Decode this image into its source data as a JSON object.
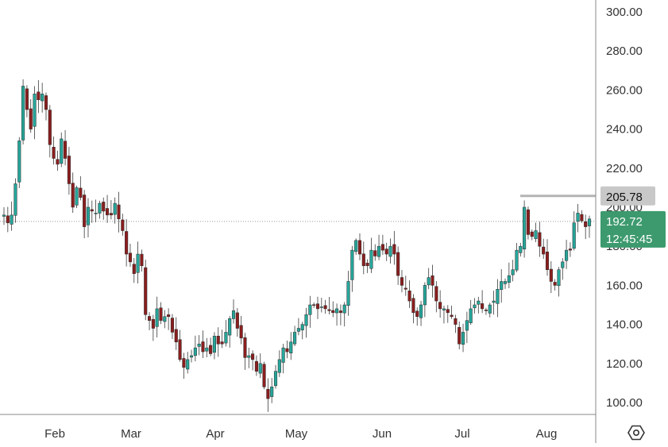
{
  "chart_data": {
    "type": "candlestick",
    "y_ticks": [
      "100.00",
      "120.00",
      "140.00",
      "160.00",
      "180.00",
      "200.00",
      "220.00",
      "240.00",
      "260.00",
      "280.00",
      "300.00"
    ],
    "ylim": [
      96,
      307
    ],
    "x_ticks": [
      "Feb",
      "Mar",
      "Apr",
      "May",
      "Jun",
      "Jul",
      "Aug"
    ],
    "grid": false,
    "colors": {
      "up": "#26a69a",
      "down": "#8b1e1e",
      "badge_last": "#3d9a6e",
      "badge_high": "#c8c8c8",
      "high_line": "#b4b4b4",
      "axis_line": "#888888"
    },
    "high_level": {
      "value": 205.78,
      "label": "205.78"
    },
    "last_price": {
      "value": 192.72,
      "label": "192.72",
      "countdown": "12:45:45"
    },
    "series": {
      "closes": [
        196,
        192,
        196,
        212,
        234,
        262,
        250,
        240,
        258,
        255,
        258,
        250,
        232,
        225,
        222,
        235,
        225,
        212,
        200,
        210,
        205,
        190,
        200,
        198,
        197,
        202,
        198,
        196,
        196,
        202,
        194,
        188,
        176,
        172,
        166,
        176,
        170,
        145,
        142,
        138,
        148,
        142,
        144,
        144,
        136,
        131,
        122,
        118,
        122,
        124,
        128,
        130,
        126,
        128,
        125,
        134,
        130,
        130,
        136,
        143,
        147,
        138,
        133,
        123,
        124,
        122,
        116,
        120,
        108,
        102,
        108,
        116,
        122,
        128,
        126,
        131,
        136,
        138,
        140,
        145,
        150,
        150,
        148,
        149,
        148,
        147,
        146,
        148,
        146,
        150,
        162,
        178,
        183,
        176,
        170,
        170,
        178,
        175,
        180,
        178,
        176,
        180,
        176,
        165,
        160,
        158,
        152,
        146,
        144,
        150,
        160,
        164,
        160,
        152,
        148,
        148,
        146,
        144,
        140,
        130,
        136,
        142,
        148,
        150,
        152,
        148,
        147,
        150,
        152,
        158,
        162,
        162,
        165,
        168,
        178,
        180,
        200,
        186,
        185,
        188,
        180,
        176,
        168,
        162,
        160,
        168,
        172,
        178,
        178,
        192,
        197,
        193,
        190,
        194
      ]
    }
  },
  "axis_icon": "hexagon-settings-icon"
}
